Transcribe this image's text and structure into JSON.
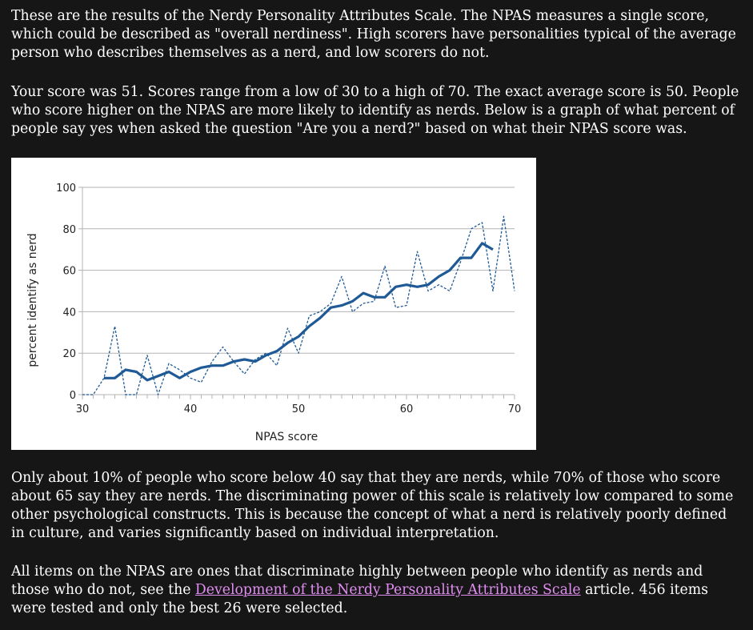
{
  "paragraphs": {
    "intro": "These are the results of the Nerdy Personality Attributes Scale. The NPAS measures a single score, which could be described as \"overall nerdiness\". High scorers have personalities typical of the average person who describes themselves as a nerd, and low scorers do not.",
    "score": "Your score was 51. Scores range from a low of 30 to a high of 70. The exact average score is 50. People who score higher on the NPAS are more likely to identify as nerds. Below is a graph of what percent of people say yes when asked the question \"Are you a nerd?\" based on what their NPAS score was.",
    "interpretation": "Only about 10% of people who score below 40 say that they are nerds, while 70% of those who score about 65 say they are nerds. The discriminating power of this scale is relatively low compared to some other psychological constructs. This is because the concept of what a nerd is relatively poorly defined in culture, and varies significantly based on individual interpretation.",
    "items_before": "All items on the NPAS are ones that discriminate highly between people who identify as nerds and those who do not, see the ",
    "items_link": "Development of the Nerdy Personality Attributes Scale",
    "items_after": " article. 456 items were tested and only the best 26 were selected."
  },
  "colors": {
    "background": "#161616",
    "text": "#ffffff",
    "link": "#e08ef0",
    "series_smoothed": "#1f5a96",
    "series_raw": "#1f5a96"
  },
  "chart_data": {
    "type": "line",
    "xlabel": "NPAS score",
    "ylabel": "percent identify as nerd",
    "xlim": [
      30,
      70
    ],
    "ylim": [
      0,
      100
    ],
    "x_ticks": [
      30,
      40,
      50,
      60,
      70
    ],
    "y_ticks": [
      0,
      20,
      40,
      60,
      80,
      100
    ],
    "grid": "horizontal",
    "series": [
      {
        "style": "solid-thick",
        "x": [
          32,
          33,
          34,
          35,
          36,
          37,
          38,
          39,
          40,
          41,
          42,
          43,
          44,
          45,
          46,
          47,
          48,
          49,
          50,
          51,
          52,
          53,
          54,
          55,
          56,
          57,
          58,
          59,
          60,
          61,
          62,
          63,
          64,
          65,
          66,
          67,
          68
        ],
        "values": [
          8,
          8,
          12,
          11,
          7,
          9,
          11,
          8,
          11,
          13,
          14,
          14,
          16,
          17,
          16,
          19,
          21,
          25,
          28,
          33,
          37,
          42,
          43,
          45,
          49,
          47,
          47,
          52,
          53,
          52,
          53,
          57,
          60,
          66,
          66,
          73,
          70
        ]
      },
      {
        "style": "dashed-thin",
        "x": [
          30,
          31,
          32,
          33,
          34,
          35,
          36,
          37,
          38,
          39,
          40,
          41,
          42,
          43,
          44,
          45,
          46,
          47,
          48,
          49,
          50,
          51,
          52,
          53,
          54,
          55,
          56,
          57,
          58,
          59,
          60,
          61,
          62,
          63,
          64,
          65,
          66,
          67,
          68,
          69,
          70
        ],
        "values": [
          0,
          0,
          8,
          33,
          0,
          0,
          19,
          0,
          15,
          12,
          8,
          6,
          16,
          23,
          16,
          10,
          17,
          20,
          14,
          32,
          20,
          38,
          40,
          44,
          57,
          40,
          44,
          45,
          62,
          42,
          43,
          69,
          50,
          53,
          50,
          64,
          80,
          83,
          50,
          86,
          50
        ]
      }
    ]
  }
}
